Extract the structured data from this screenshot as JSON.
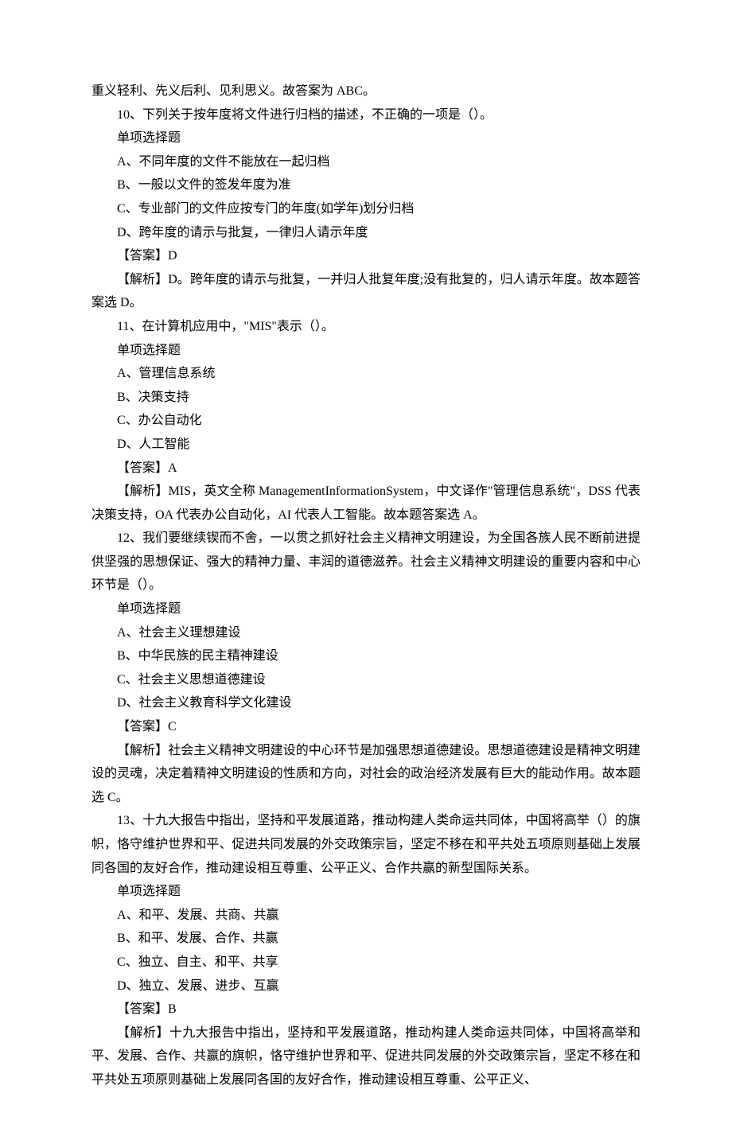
{
  "lines": [
    {
      "text": "重义轻利、先义后利、见利思义。故答案为 ABC。",
      "indent": false
    },
    {
      "text": "10、下列关于按年度将文件进行归档的描述，不正确的一项是（）。",
      "indent": true
    },
    {
      "text": "单项选择题",
      "indent": true
    },
    {
      "text": "A、不同年度的文件不能放在一起归档",
      "indent": true
    },
    {
      "text": "B、一般以文件的签发年度为准",
      "indent": true
    },
    {
      "text": "C、专业部门的文件应按专门的年度(如学年)划分归档",
      "indent": true
    },
    {
      "text": "D、跨年度的请示与批复，一律归人请示年度",
      "indent": true
    },
    {
      "text": "【答案】D",
      "indent": true
    },
    {
      "text": "【解析】D。跨年度的请示与批复，一并归人批复年度;没有批复的，归人请示年度。故本题答案选 D。",
      "indent": true
    },
    {
      "text": "11、在计算机应用中，\"MIS\"表示（）。",
      "indent": true
    },
    {
      "text": "单项选择题",
      "indent": true
    },
    {
      "text": "A、管理信息系统",
      "indent": true
    },
    {
      "text": "B、决策支持",
      "indent": true
    },
    {
      "text": "C、办公自动化",
      "indent": true
    },
    {
      "text": "D、人工智能",
      "indent": true
    },
    {
      "text": "【答案】A",
      "indent": true
    },
    {
      "text": "【解析】MIS，英文全称 ManagementInformationSystem，中文译作\"管理信息系统\"，DSS 代表决策支持，OA 代表办公自动化，AI 代表人工智能。故本题答案选 A。",
      "indent": true
    },
    {
      "text": "12、我们要继续锲而不舍，一以贯之抓好社会主义精神文明建设，为全国各族人民不断前进提供坚强的思想保证、强大的精神力量、丰润的道德滋养。社会主义精神文明建设的重要内容和中心环节是（）。",
      "indent": true
    },
    {
      "text": "单项选择题",
      "indent": true
    },
    {
      "text": "A、社会主义理想建设",
      "indent": true
    },
    {
      "text": "B、中华民族的民主精神建设",
      "indent": true
    },
    {
      "text": "C、社会主义思想道德建设",
      "indent": true
    },
    {
      "text": "D、社会主义教育科学文化建设",
      "indent": true
    },
    {
      "text": "【答案】C",
      "indent": true
    },
    {
      "text": "【解析】社会主义精神文明建设的中心环节是加强思想道德建设。思想道德建设是精神文明建设的灵魂，决定着精神文明建设的性质和方向，对社会的政治经济发展有巨大的能动作用。故本题选 C。",
      "indent": true
    },
    {
      "text": "13、十九大报告中指出，坚持和平发展道路，推动构建人类命运共同体，中国将高举（）的旗帜，恪守维护世界和平、促进共同发展的外交政策宗旨，坚定不移在和平共处五项原则基础上发展同各国的友好合作，推动建设相互尊重、公平正义、合作共赢的新型国际关系。",
      "indent": true
    },
    {
      "text": "单项选择题",
      "indent": true
    },
    {
      "text": "A、和平、发展、共商、共赢",
      "indent": true
    },
    {
      "text": "B、和平、发展、合作、共赢",
      "indent": true
    },
    {
      "text": "C、独立、自主、和平、共享",
      "indent": true
    },
    {
      "text": "D、独立、发展、进步、互赢",
      "indent": true
    },
    {
      "text": "【答案】B",
      "indent": true
    },
    {
      "text": "【解析】十九大报告中指出，坚持和平发展道路，推动构建人类命运共同体，中国将高举和平、发展、合作、共赢的旗帜，恪守维护世界和平、促进共同发展的外交政策宗旨，坚定不移在和平共处五项原则基础上发展同各国的友好合作，推动建设相互尊重、公平正义、",
      "indent": true
    }
  ]
}
